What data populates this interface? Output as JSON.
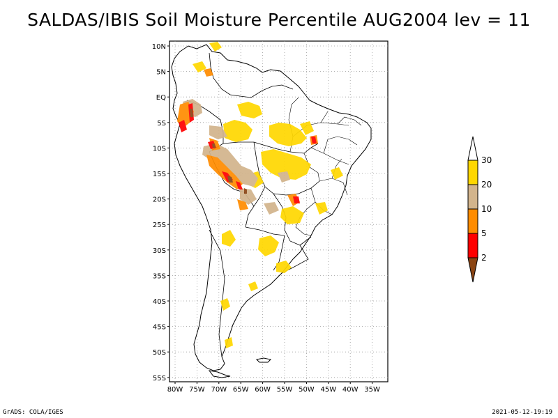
{
  "title": "SALDAS/IBIS Soil Moisture Percentile AUG2004 lev = 11",
  "map": {
    "lat_labels": [
      "10N",
      "5N",
      "EQ",
      "5S",
      "10S",
      "15S",
      "20S",
      "25S",
      "30S",
      "35S",
      "40S",
      "45S",
      "50S",
      "55S"
    ],
    "lon_labels": [
      "80W",
      "75W",
      "70W",
      "65W",
      "60W",
      "55W",
      "50W",
      "45W",
      "40W",
      "35W"
    ],
    "grid": true,
    "region": "South America"
  },
  "colorbar": {
    "labels": [
      "2",
      "5",
      "10",
      "20",
      "30"
    ],
    "colors": {
      "below_2": "#8b4513",
      "2_5": "#ff0000",
      "5_10": "#ff8c00",
      "10_20": "#d2b48c",
      "20_30": "#ffd700",
      "above_30": "#ffffff"
    }
  },
  "footer": {
    "left": "GrADS: COLA/IGES",
    "right": "2021-05-12-19:19"
  }
}
